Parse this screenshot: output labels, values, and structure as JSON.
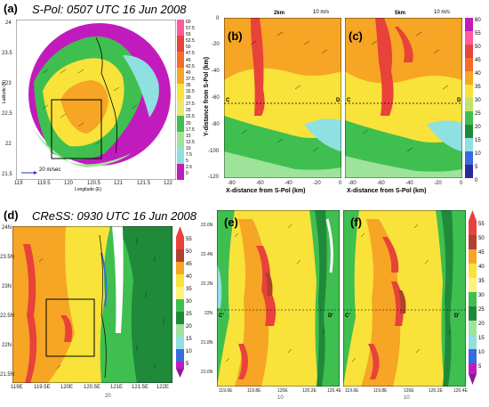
{
  "figure": {
    "panel_a": {
      "label": "(a)",
      "title": "S-Pol: 0507 UTC 16 Jun 2008",
      "xlabel": "Longitude (E)",
      "ylabel": "Latitude (N)",
      "xticks": [
        "119",
        "119.5",
        "120",
        "120.5",
        "121",
        "121.5",
        "122"
      ],
      "yticks": [
        "24",
        "23.5",
        "23",
        "22.5",
        "22",
        "21.5"
      ],
      "wind_ref": "20 m/sec",
      "colorbar": [
        "60",
        "57.5",
        "55",
        "52.5",
        "50",
        "47.5",
        "45",
        "42.5",
        "40",
        "37.5",
        "35",
        "32.5",
        "30",
        "27.5",
        "25",
        "22.5",
        "20",
        "17.5",
        "15",
        "12.5",
        "10",
        "7.5",
        "5",
        "2.5",
        "0"
      ]
    },
    "panel_b": {
      "label": "(b)",
      "height": "2km",
      "wind_ref": "10 m/s",
      "ylabel": "Y-distance from S-Pol (km)",
      "xlabel": "X-distance from S-Pol (km)",
      "xticks": [
        "-80",
        "-60",
        "-40",
        "-20",
        "0"
      ],
      "yticks": [
        "0",
        "-20",
        "-40",
        "-60",
        "-80",
        "-100",
        "-120"
      ],
      "marker_c": "C",
      "marker_d": "D"
    },
    "panel_c": {
      "label": "(c)",
      "height": "5km",
      "wind_ref": "10 m/s",
      "xlabel": "X-distance from S-Pol (km)",
      "xticks": [
        "-80",
        "-60",
        "-40",
        "-20",
        "0"
      ],
      "marker_c": "C",
      "marker_d": "D",
      "colorbar": [
        "60",
        "55",
        "50",
        "45",
        "40",
        "35",
        "30",
        "25",
        "20",
        "15",
        "10",
        "5",
        "0"
      ]
    },
    "panel_d": {
      "label": "(d)",
      "title": "CReSS: 0930 UTC 16 Jun 2008",
      "xticks": [
        "119E",
        "119.5E",
        "120E",
        "120.5E",
        "121E",
        "121.5E",
        "122E"
      ],
      "yticks": [
        "24N",
        "23.5N",
        "23N",
        "22.5N",
        "22N",
        "21.5N"
      ],
      "wind_ref": "20"
    },
    "panel_e": {
      "label": "(e)",
      "xticks": [
        "119.6E",
        "119.8E",
        "120E",
        "120.2E",
        "120.4E"
      ],
      "yticks": [
        "22.6N",
        "22.4N",
        "22.2N",
        "22N",
        "21.8N",
        "21.6N"
      ],
      "marker_c": "C'",
      "marker_d": "D'",
      "wind_ref": "10"
    },
    "panel_f": {
      "label": "(f)",
      "xticks": [
        "119.6E",
        "119.8E",
        "120E",
        "120.2E",
        "120.4E"
      ],
      "marker_c": "C'",
      "marker_d": "D'",
      "wind_ref": "10",
      "colorbar": [
        "55",
        "50",
        "45",
        "40",
        "35",
        "30",
        "25",
        "20",
        "15",
        "10",
        "5"
      ]
    },
    "colors": {
      "magenta": "#c21bbd",
      "green_dark": "#1f8a3a",
      "green": "#3fbf4f",
      "green_light": "#9ee39a",
      "cyan": "#8fe0e0",
      "yellow": "#f9e23a",
      "orange": "#f6a524",
      "red": "#e8423a",
      "brown": "#b0402f"
    }
  }
}
